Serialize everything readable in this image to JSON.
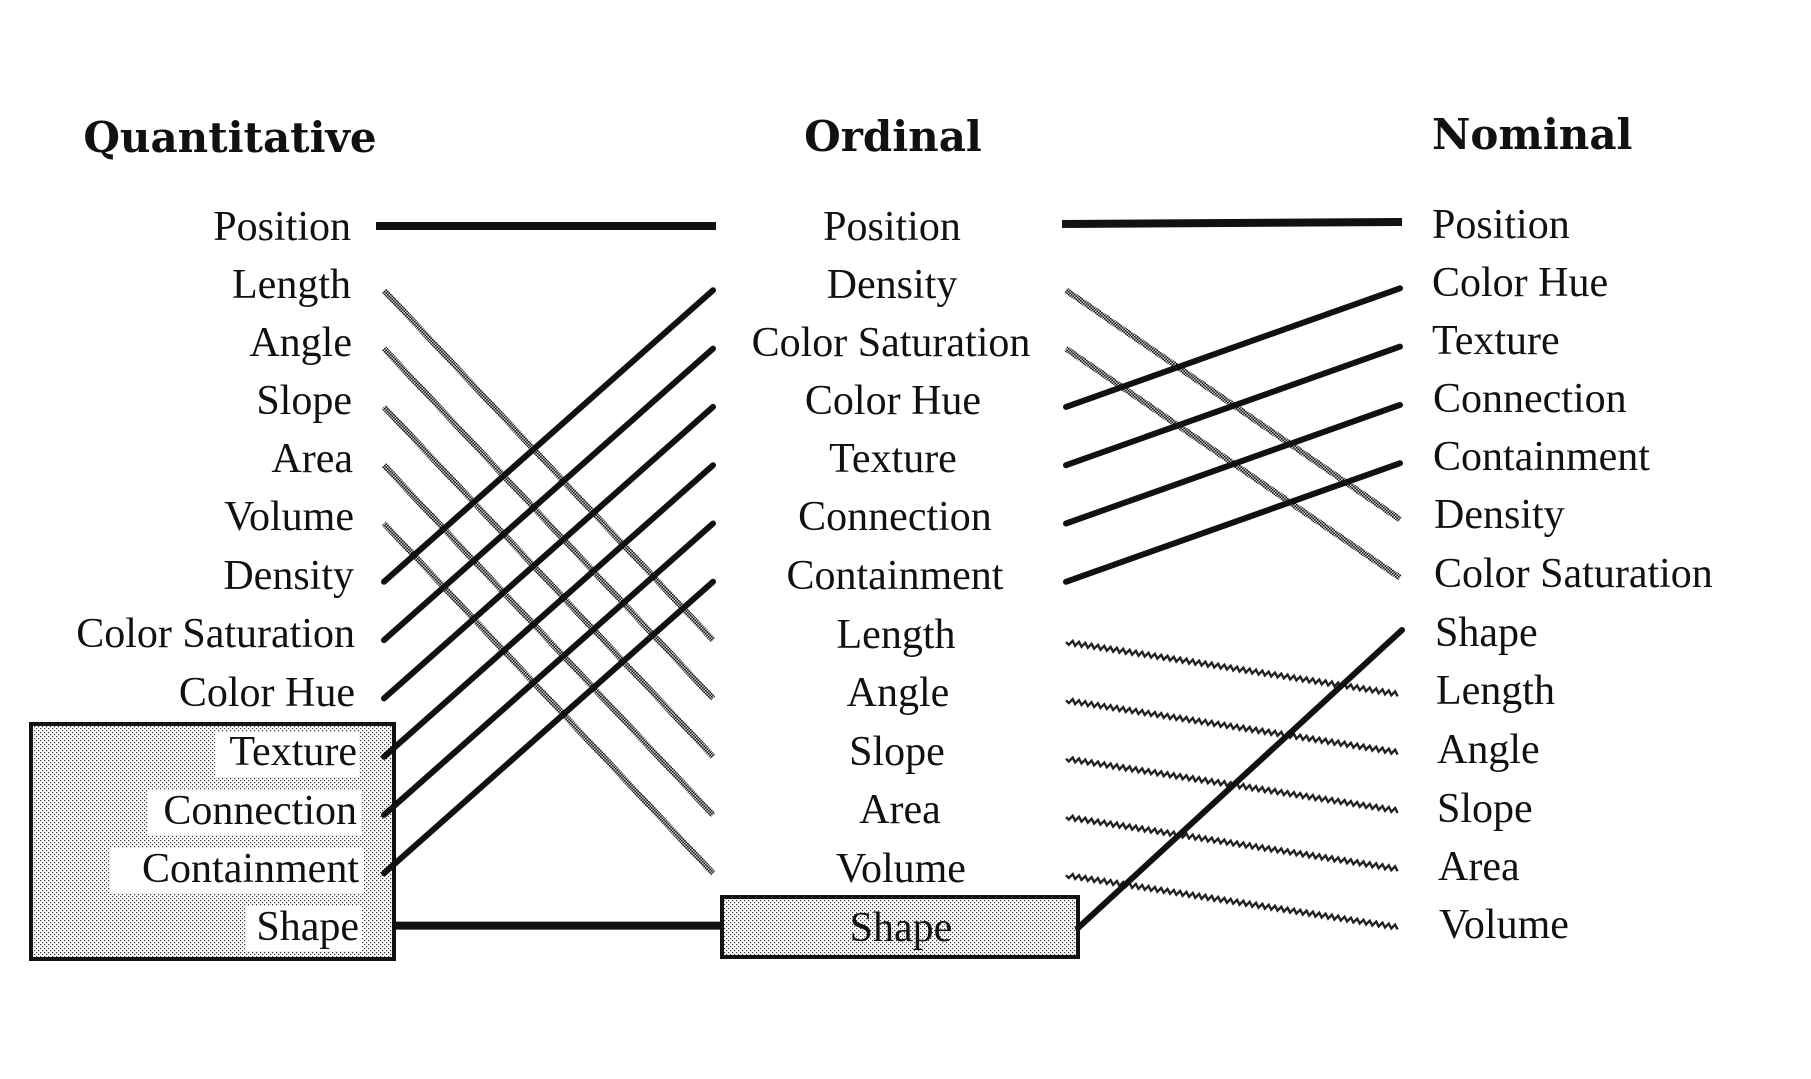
{
  "columns": [
    {
      "header": "Quantitative",
      "items": [
        "Position",
        "Length",
        "Angle",
        "Slope",
        "Area",
        "Volume",
        "Density",
        "Color Saturation",
        "Color Hue",
        "Texture",
        "Connection",
        "Containment",
        "Shape"
      ]
    },
    {
      "header": "Ordinal",
      "items": [
        "Position",
        "Density",
        "Color Saturation",
        "Color Hue",
        "Texture",
        "Connection",
        "Containment",
        "Length",
        "Angle",
        "Slope",
        "Area",
        "Volume",
        "Shape"
      ]
    },
    {
      "header": "Nominal",
      "items": [
        "Position",
        "Color Hue",
        "Texture",
        "Connection",
        "Containment",
        "Density",
        "Color Saturation",
        "Shape",
        "Length",
        "Angle",
        "Slope",
        "Area",
        "Volume"
      ]
    }
  ],
  "line_styles": {
    "relevant": "solid",
    "not_applicable_quantitative_to_ordinal": "dotted",
    "not_relevant_ordinal_to_nominal": "wavy"
  },
  "colors": {
    "ink": "#111111",
    "background": "#ffffff",
    "box_fill": "stippled-gray"
  }
}
